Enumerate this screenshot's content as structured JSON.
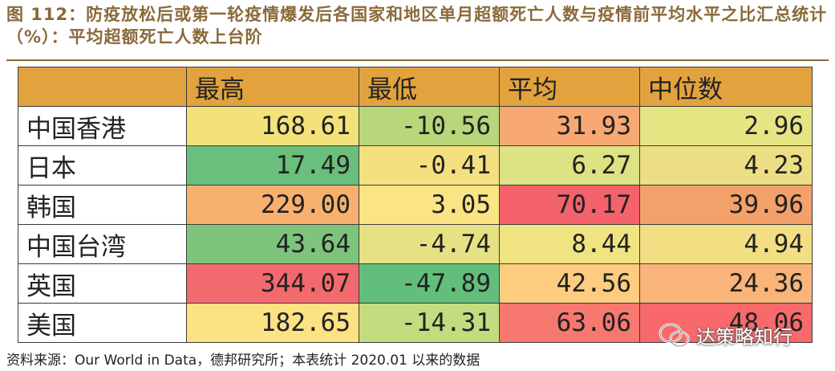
{
  "title": "图 112：防疫放松后或第一轮疫情爆发后各国家和地区单月超额死亡人数与疫情前平均水平之比汇总统计（%）：平均超额死亡人数上台阶",
  "source": "资料来源：Our World in Data，德邦研究所；本表统计 2020.01 以来的数据",
  "watermark": "达策略知行",
  "chart_data": {
    "type": "table",
    "columns": [
      "",
      "最高",
      "最低",
      "平均",
      "中位数"
    ],
    "rows": [
      {
        "label": "中国香港",
        "values": [
          "168.61",
          "-10.56",
          "31.93",
          "2.96"
        ],
        "colors": [
          "#f3e27a",
          "#b7d77a",
          "#f8a873",
          "#e6e583"
        ]
      },
      {
        "label": "日本",
        "values": [
          "17.49",
          "-0.41",
          "6.27",
          "4.23"
        ],
        "colors": [
          "#69bf7b",
          "#f5e07f",
          "#dde282",
          "#ecdf83"
        ]
      },
      {
        "label": "韩国",
        "values": [
          "229.00",
          "3.05",
          "70.17",
          "39.96"
        ],
        "colors": [
          "#f8b06e",
          "#fbe484",
          "#f4626b",
          "#f3a06a"
        ]
      },
      {
        "label": "中国台湾",
        "values": [
          "43.64",
          "-4.74",
          "8.44",
          "4.94"
        ],
        "colors": [
          "#7fc47c",
          "#e6e283",
          "#f0e382",
          "#f2df84"
        ]
      },
      {
        "label": "英国",
        "values": [
          "344.07",
          "-47.89",
          "42.56",
          "24.36"
        ],
        "colors": [
          "#f26a6e",
          "#63be7b",
          "#fdcc7f",
          "#f9b47a"
        ]
      },
      {
        "label": "美国",
        "values": [
          "182.65",
          "-14.31",
          "63.06",
          "48.06"
        ],
        "colors": [
          "#fde283",
          "#c4dc80",
          "#f6786f",
          "#f8696b"
        ]
      }
    ]
  }
}
